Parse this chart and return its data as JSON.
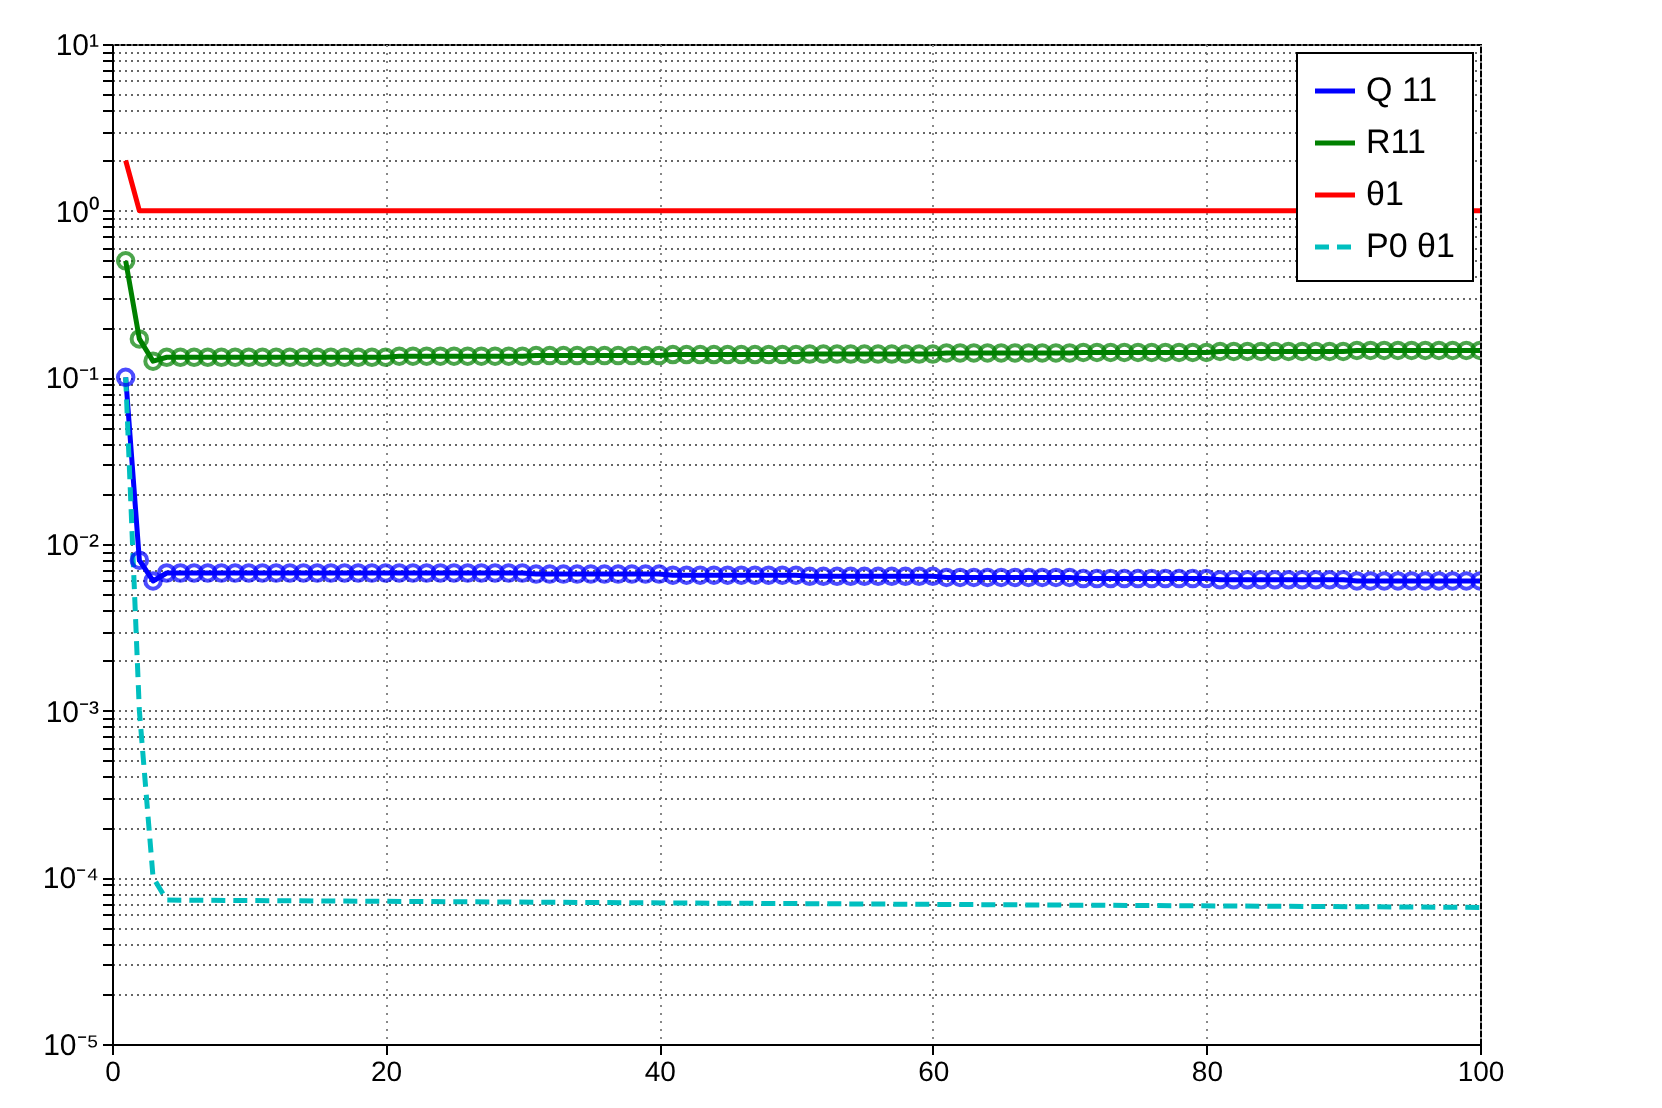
{
  "chart_data": {
    "type": "line",
    "log": "y",
    "grid": true,
    "legend": "top right",
    "xlim": [
      0,
      100
    ],
    "xticks": [
      0,
      20,
      40,
      60,
      80,
      100
    ],
    "ylim": [
      1e-05,
      10
    ],
    "yticks": [
      {
        "value": 1e-05,
        "label": "10⁻⁵"
      },
      {
        "value": 2e-05,
        "label": null
      },
      {
        "value": 3e-05,
        "label": null
      },
      {
        "value": 4e-05,
        "label": null
      },
      {
        "value": 5e-05,
        "label": null
      },
      {
        "value": 6e-05,
        "label": null
      },
      {
        "value": 7e-05,
        "label": null
      },
      {
        "value": 8e-05,
        "label": null
      },
      {
        "value": 9e-05,
        "label": null
      },
      {
        "value": 0.0001,
        "label": "10⁻⁴"
      },
      {
        "value": 0.0002,
        "label": null
      },
      {
        "value": 0.0003,
        "label": null
      },
      {
        "value": 0.0004,
        "label": null
      },
      {
        "value": 0.0005,
        "label": null
      },
      {
        "value": 0.0006,
        "label": null
      },
      {
        "value": 0.0007,
        "label": null
      },
      {
        "value": 0.0008,
        "label": null
      },
      {
        "value": 0.0009,
        "label": null
      },
      {
        "value": 0.001,
        "label": "10⁻³"
      },
      {
        "value": 0.002,
        "label": null
      },
      {
        "value": 0.003,
        "label": null
      },
      {
        "value": 0.004,
        "label": null
      },
      {
        "value": 0.005,
        "label": null
      },
      {
        "value": 0.006,
        "label": null
      },
      {
        "value": 0.007,
        "label": null
      },
      {
        "value": 0.008,
        "label": null
      },
      {
        "value": 0.009,
        "label": null
      },
      {
        "value": 0.01,
        "label": "10⁻²"
      },
      {
        "value": 0.02,
        "label": null
      },
      {
        "value": 0.03,
        "label": null
      },
      {
        "value": 0.04,
        "label": null
      },
      {
        "value": 0.05,
        "label": null
      },
      {
        "value": 0.06,
        "label": null
      },
      {
        "value": 0.07,
        "label": null
      },
      {
        "value": 0.08,
        "label": null
      },
      {
        "value": 0.09,
        "label": null
      },
      {
        "value": 0.1,
        "label": "10⁻¹"
      },
      {
        "value": 0.2,
        "label": null
      },
      {
        "value": 0.3,
        "label": null
      },
      {
        "value": 0.4,
        "label": null
      },
      {
        "value": 0.5,
        "label": null
      },
      {
        "value": 0.6,
        "label": null
      },
      {
        "value": 0.7,
        "label": null
      },
      {
        "value": 0.8,
        "label": null
      },
      {
        "value": 0.9,
        "label": null
      },
      {
        "value": 1,
        "label": "10⁰"
      },
      {
        "value": 2,
        "label": null
      },
      {
        "value": 3,
        "label": null
      },
      {
        "value": 4,
        "label": null
      },
      {
        "value": 5,
        "label": null
      },
      {
        "value": 6,
        "label": null
      },
      {
        "value": 7,
        "label": null
      },
      {
        "value": 8,
        "label": null
      },
      {
        "value": 9,
        "label": null
      },
      {
        "value": 10,
        "label": "10¹"
      }
    ],
    "series": [
      {
        "name": "Q  11",
        "color": "#0000ff",
        "marker": "circle",
        "line_style": "solid",
        "x": [
          1,
          2,
          3,
          4,
          5,
          6,
          7,
          8,
          9,
          10,
          11,
          12,
          13,
          14,
          15,
          16,
          17,
          18,
          19,
          20,
          21,
          22,
          23,
          24,
          25,
          26,
          27,
          28,
          29,
          30,
          31,
          32,
          33,
          34,
          35,
          36,
          37,
          38,
          39,
          40,
          41,
          42,
          43,
          44,
          45,
          46,
          47,
          48,
          49,
          50,
          51,
          52,
          53,
          54,
          55,
          56,
          57,
          58,
          59,
          60,
          61,
          62,
          63,
          64,
          65,
          66,
          67,
          68,
          69,
          70,
          71,
          72,
          73,
          74,
          75,
          76,
          77,
          78,
          79,
          80,
          81,
          82,
          83,
          84,
          85,
          86,
          87,
          88,
          89,
          90,
          91,
          92,
          93,
          94,
          95,
          96,
          97,
          98,
          99,
          100
        ],
        "values": [
          0.1,
          0.008,
          0.006,
          0.0067,
          0.0067,
          0.0067,
          0.0067,
          0.0067,
          0.0067,
          0.0067,
          0.0067,
          0.0067,
          0.0067,
          0.0067,
          0.0067,
          0.0067,
          0.0067,
          0.0067,
          0.0067,
          0.0067,
          0.0067,
          0.0067,
          0.0067,
          0.0067,
          0.0067,
          0.0067,
          0.0067,
          0.0067,
          0.0067,
          0.0067,
          0.0066,
          0.0066,
          0.0066,
          0.0066,
          0.0066,
          0.0066,
          0.0066,
          0.0066,
          0.0066,
          0.0066,
          0.0065,
          0.0065,
          0.0065,
          0.0065,
          0.0065,
          0.0065,
          0.0065,
          0.0065,
          0.0065,
          0.0065,
          0.0064,
          0.0064,
          0.0064,
          0.0064,
          0.0064,
          0.0064,
          0.0064,
          0.0064,
          0.0064,
          0.0064,
          0.0063,
          0.0063,
          0.0063,
          0.0063,
          0.0063,
          0.0063,
          0.0063,
          0.0063,
          0.0063,
          0.0063,
          0.0062,
          0.0062,
          0.0062,
          0.0062,
          0.0062,
          0.0062,
          0.0062,
          0.0062,
          0.0062,
          0.0062,
          0.0061,
          0.0061,
          0.0061,
          0.0061,
          0.0061,
          0.0061,
          0.0061,
          0.0061,
          0.0061,
          0.0061,
          0.006,
          0.006,
          0.006,
          0.006,
          0.006,
          0.006,
          0.006,
          0.006,
          0.006,
          0.006
        ]
      },
      {
        "name": "R11",
        "color": "#008000",
        "marker": "circle",
        "line_style": "solid",
        "x": [
          1,
          2,
          3,
          4,
          5,
          6,
          7,
          8,
          9,
          10,
          11,
          12,
          13,
          14,
          15,
          16,
          17,
          18,
          19,
          20,
          21,
          22,
          23,
          24,
          25,
          26,
          27,
          28,
          29,
          30,
          31,
          32,
          33,
          34,
          35,
          36,
          37,
          38,
          39,
          40,
          41,
          42,
          43,
          44,
          45,
          46,
          47,
          48,
          49,
          50,
          51,
          52,
          53,
          54,
          55,
          56,
          57,
          58,
          59,
          60,
          61,
          62,
          63,
          64,
          65,
          66,
          67,
          68,
          69,
          70,
          71,
          72,
          73,
          74,
          75,
          76,
          77,
          78,
          79,
          80,
          81,
          82,
          83,
          84,
          85,
          86,
          87,
          88,
          89,
          90,
          91,
          92,
          93,
          94,
          95,
          96,
          97,
          98,
          99,
          100
        ],
        "values": [
          0.5,
          0.17,
          0.125,
          0.132,
          0.132,
          0.132,
          0.132,
          0.132,
          0.132,
          0.132,
          0.132,
          0.132,
          0.132,
          0.132,
          0.132,
          0.132,
          0.132,
          0.132,
          0.132,
          0.132,
          0.134,
          0.134,
          0.134,
          0.134,
          0.134,
          0.134,
          0.134,
          0.134,
          0.134,
          0.134,
          0.135,
          0.135,
          0.135,
          0.135,
          0.135,
          0.135,
          0.135,
          0.135,
          0.135,
          0.135,
          0.137,
          0.137,
          0.137,
          0.137,
          0.137,
          0.137,
          0.137,
          0.137,
          0.137,
          0.137,
          0.138,
          0.138,
          0.138,
          0.138,
          0.138,
          0.138,
          0.138,
          0.138,
          0.138,
          0.138,
          0.14,
          0.14,
          0.14,
          0.14,
          0.14,
          0.14,
          0.14,
          0.14,
          0.14,
          0.14,
          0.141,
          0.141,
          0.141,
          0.141,
          0.141,
          0.141,
          0.141,
          0.141,
          0.141,
          0.141,
          0.143,
          0.143,
          0.143,
          0.143,
          0.143,
          0.143,
          0.143,
          0.143,
          0.143,
          0.143,
          0.145,
          0.145,
          0.145,
          0.145,
          0.145,
          0.145,
          0.145,
          0.145,
          0.145,
          0.145
        ]
      },
      {
        "name": "θ1",
        "color": "#ff0000",
        "marker": "none",
        "line_style": "solid",
        "x": [
          1,
          2,
          100
        ],
        "values": [
          2,
          1,
          1
        ]
      },
      {
        "name": "P0 θ1",
        "color": "#00bfbf",
        "marker": "none",
        "line_style": "dashed",
        "x": [
          1,
          2,
          3,
          4,
          100
        ],
        "values": [
          0.1,
          0.001,
          0.0001,
          7.3e-05,
          6.6e-05
        ]
      }
    ]
  }
}
